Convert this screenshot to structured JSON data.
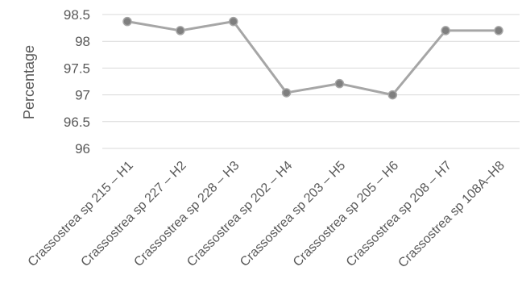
{
  "chart_data": {
    "type": "line",
    "title": "",
    "xlabel": "",
    "ylabel": "Percentage",
    "ylim": [
      96,
      98.5
    ],
    "yticks": [
      96,
      96.5,
      97,
      97.5,
      98,
      98.5
    ],
    "ytick_labels": [
      "96",
      "96.5",
      "97",
      "97.5",
      "98",
      "98.5"
    ],
    "grid": true,
    "legend": "none",
    "categories": [
      "Crassostrea sp 215 – H1",
      "Crassostrea sp 227 – H2",
      "Crassostrea sp 228 – H3",
      "Crassostrea sp 202 – H4",
      "Crassostrea sp 203 – H5",
      "Crassostrea sp 205 – H6",
      "Crassostrea sp 208 – H7",
      "Crassostrea sp 108A–H8"
    ],
    "series": [
      {
        "values": [
          98.37,
          98.2,
          98.37,
          97.04,
          97.21,
          97.0,
          98.2,
          98.2
        ],
        "color": "#a6a6a6",
        "marker_color": "#7f7f7f"
      }
    ]
  }
}
